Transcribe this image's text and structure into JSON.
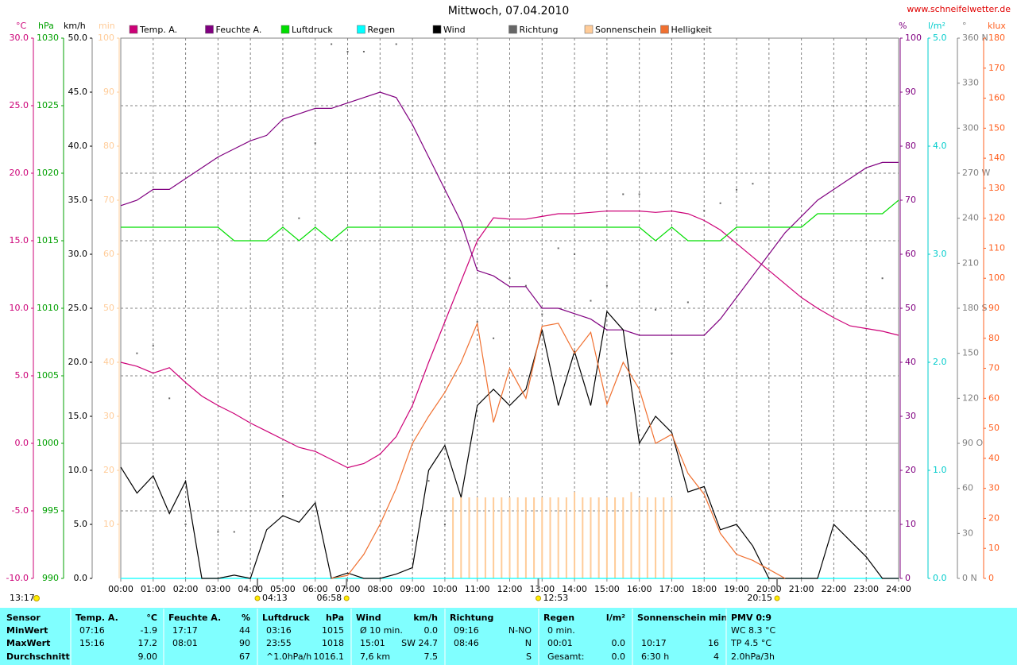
{
  "chart_data": {
    "type": "line",
    "title": "Mittwoch, 07.04.2010",
    "source": "www.schneifelwetter.de",
    "corner_note": "13:17",
    "grid": true,
    "zero_line": true,
    "xlim": [
      0,
      24
    ],
    "xticks": [
      {
        "value": 0,
        "label": "00:00"
      },
      {
        "value": 1,
        "label": "01:00"
      },
      {
        "value": 2,
        "label": "02:00"
      },
      {
        "value": 3,
        "label": "03:00"
      },
      {
        "value": 4,
        "label": "04:00"
      },
      {
        "value": 5,
        "label": "05:00"
      },
      {
        "value": 6,
        "label": "06:00"
      },
      {
        "value": 7,
        "label": "07:00"
      },
      {
        "value": 8,
        "label": "08:00"
      },
      {
        "value": 9,
        "label": "09:00"
      },
      {
        "value": 10,
        "label": "10:00"
      },
      {
        "value": 11,
        "label": "11:00"
      },
      {
        "value": 12,
        "label": "12:00"
      },
      {
        "value": 13,
        "label": "13:00"
      },
      {
        "value": 14,
        "label": "14:00"
      },
      {
        "value": 15,
        "label": "15:00"
      },
      {
        "value": 16,
        "label": "16:00"
      },
      {
        "value": 17,
        "label": "17:00"
      },
      {
        "value": 18,
        "label": "18:00"
      },
      {
        "value": 19,
        "label": "19:00"
      },
      {
        "value": 20,
        "label": "20:00"
      },
      {
        "value": 21,
        "label": "21:00"
      },
      {
        "value": 22,
        "label": "22:00"
      },
      {
        "value": 23,
        "label": "23:00"
      },
      {
        "value": 24,
        "label": "24:00"
      }
    ],
    "annotations": [
      {
        "x": 4.217,
        "label": "04:13"
      },
      {
        "x": 6.967,
        "label": "06:58"
      },
      {
        "x": 12.883,
        "label": "12:53"
      },
      {
        "x": 20.25,
        "label": "20:15"
      }
    ],
    "y_axes": [
      {
        "label": "°C",
        "color": "#cc0077",
        "side": "left",
        "ylim": [
          -10,
          30
        ],
        "yticks": [
          {
            "value": -10,
            "label": "-10.0"
          },
          {
            "value": -5,
            "label": "-5.0"
          },
          {
            "value": 0,
            "label": "0.0"
          },
          {
            "value": 5,
            "label": "5.0"
          },
          {
            "value": 10,
            "label": "10.0"
          },
          {
            "value": 15,
            "label": "15.0"
          },
          {
            "value": 20,
            "label": "20.0"
          },
          {
            "value": 25,
            "label": "25.0"
          },
          {
            "value": 30,
            "label": "30.0"
          }
        ]
      },
      {
        "label": "hPa",
        "color": "#00a000",
        "side": "left",
        "ylim": [
          990,
          1030
        ],
        "yticks": [
          990,
          995,
          1000,
          1005,
          1010,
          1015,
          1020,
          1025,
          1030
        ]
      },
      {
        "label": "km/h",
        "color": "#000000",
        "side": "left",
        "ylim": [
          0,
          50
        ],
        "yticks": [
          {
            "value": 0,
            "label": "0.0"
          },
          {
            "value": 5,
            "label": "5.0"
          },
          {
            "value": 10,
            "label": "10.0"
          },
          {
            "value": 15,
            "label": "15.0"
          },
          {
            "value": 20,
            "label": "20.0"
          },
          {
            "value": 25,
            "label": "25.0"
          },
          {
            "value": 30,
            "label": "30.0"
          },
          {
            "value": 35,
            "label": "35.0"
          },
          {
            "value": 40,
            "label": "40.0"
          },
          {
            "value": 45,
            "label": "45.0"
          },
          {
            "value": 50,
            "label": "50.0"
          }
        ]
      },
      {
        "label": "min",
        "color": "#ffcc99",
        "side": "left",
        "ylim": [
          0,
          100
        ],
        "yticks": [
          10,
          20,
          30,
          40,
          50,
          60,
          70,
          80,
          90,
          100
        ]
      },
      {
        "label": "%",
        "color": "#800080",
        "side": "right",
        "ylim": [
          0,
          100
        ],
        "yticks": [
          0,
          10,
          20,
          30,
          40,
          50,
          60,
          70,
          80,
          90,
          100
        ]
      },
      {
        "label": "l/m²",
        "color": "#00cccc",
        "side": "right",
        "ylim": [
          0,
          5
        ],
        "yticks": [
          {
            "value": 0,
            "label": "0.0"
          },
          {
            "value": 1,
            "label": "1.0"
          },
          {
            "value": 2,
            "label": "2.0"
          },
          {
            "value": 3,
            "label": "3.0"
          },
          {
            "value": 4,
            "label": "4.0"
          },
          {
            "value": 5,
            "label": "5.0"
          }
        ]
      },
      {
        "label": "°",
        "color": "#808080",
        "side": "right",
        "ylim": [
          0,
          360
        ],
        "yticks": [
          {
            "value": 0,
            "label": "0 N"
          },
          30,
          60,
          {
            "value": 90,
            "label": "90 O"
          },
          120,
          150,
          {
            "value": 180,
            "label": "180 S"
          },
          210,
          240,
          {
            "value": 270,
            "label": "270 W"
          },
          300,
          330,
          {
            "value": 360,
            "label": "360 N"
          }
        ]
      },
      {
        "label": "klux",
        "color": "#ff6020",
        "side": "right",
        "ylim": [
          0,
          180
        ],
        "yticks": [
          0,
          10,
          20,
          30,
          40,
          50,
          60,
          70,
          80,
          90,
          100,
          110,
          120,
          130,
          140,
          150,
          160,
          170,
          180
        ]
      }
    ],
    "x": [
      0,
      0.5,
      1,
      1.5,
      2,
      2.5,
      3,
      3.5,
      4,
      4.5,
      5,
      5.5,
      6,
      6.5,
      7,
      7.5,
      8,
      8.5,
      9,
      9.5,
      10,
      10.5,
      11,
      11.5,
      12,
      12.5,
      13,
      13.5,
      14,
      14.5,
      15,
      15.5,
      16,
      16.5,
      17,
      17.5,
      18,
      18.5,
      19,
      19.5,
      20,
      20.5,
      21,
      21.5,
      22,
      22.5,
      23,
      23.5,
      24
    ],
    "series": [
      {
        "name": "Temp. A.",
        "color": "#cc0077",
        "axis": 0,
        "kind": "line",
        "values": [
          6.0,
          5.7,
          5.2,
          5.6,
          4.5,
          3.5,
          2.8,
          2.2,
          1.5,
          0.9,
          0.3,
          -0.3,
          -0.6,
          -1.2,
          -1.8,
          -1.5,
          -0.8,
          0.5,
          2.8,
          6.0,
          9.0,
          12.0,
          15.0,
          16.7,
          16.6,
          16.6,
          16.8,
          17.0,
          17.0,
          17.1,
          17.2,
          17.2,
          17.2,
          17.1,
          17.2,
          17.0,
          16.5,
          15.8,
          14.8,
          13.8,
          12.8,
          11.8,
          10.8,
          10.0,
          9.3,
          8.7,
          8.5,
          8.3,
          8.0
        ]
      },
      {
        "name": "Feuchte A.",
        "color": "#800080",
        "axis": 4,
        "kind": "line",
        "values": [
          69,
          70,
          72,
          72,
          74,
          76,
          78,
          79.5,
          81,
          82,
          85,
          86,
          87,
          87,
          88,
          89,
          90,
          89,
          84,
          78,
          72,
          66,
          57,
          56,
          54,
          54,
          50,
          50,
          49,
          48,
          46,
          46,
          45,
          45,
          45,
          45,
          45,
          48,
          52,
          56,
          60,
          64,
          67,
          70,
          72,
          74,
          76,
          77,
          77
        ]
      },
      {
        "name": "Luftdruck",
        "color": "#00dd00",
        "axis": 1,
        "kind": "line",
        "values": [
          1016,
          1016,
          1016,
          1016,
          1016,
          1016,
          1016,
          1015,
          1015,
          1015,
          1016,
          1015,
          1016,
          1015,
          1016,
          1016,
          1016,
          1016,
          1016,
          1016,
          1016,
          1016,
          1016,
          1016,
          1016,
          1016,
          1016,
          1016,
          1016,
          1016,
          1016,
          1016,
          1016,
          1015,
          1016,
          1015,
          1015,
          1015,
          1016,
          1016,
          1016,
          1016,
          1016,
          1017,
          1017,
          1017,
          1017,
          1017,
          1018
        ]
      },
      {
        "name": "Regen",
        "color": "#00ffff",
        "axis": 5,
        "kind": "line",
        "x": [
          0,
          24
        ],
        "values": [
          0,
          0
        ]
      },
      {
        "name": "Wind",
        "color": "#000000",
        "axis": 2,
        "kind": "line",
        "values": [
          10.3,
          7.9,
          9.5,
          6.0,
          9.0,
          0,
          0,
          0.3,
          0,
          4.5,
          5.8,
          5.2,
          7.0,
          0,
          0.5,
          0,
          0,
          0.4,
          1.0,
          10.0,
          12.3,
          7.5,
          16.0,
          17.5,
          16.0,
          17.5,
          23.0,
          16.0,
          21.0,
          16.0,
          24.7,
          23.0,
          12.5,
          15.0,
          13.5,
          8.0,
          8.5,
          4.5,
          5.0,
          3.0,
          0,
          0,
          0,
          0,
          5.0,
          3.5,
          2.0,
          0,
          0
        ]
      },
      {
        "name": "Richtung",
        "color": "#666666",
        "axis": 6,
        "kind": "dots",
        "values": [
          null,
          150,
          155,
          120,
          36,
          null,
          31,
          31,
          null,
          null,
          55,
          240,
          290,
          356,
          351,
          351,
          null,
          356,
          25,
          65,
          36,
          null,
          171,
          160,
          200,
          195,
          176,
          220,
          216,
          185,
          195,
          256,
          256,
          179,
          150,
          184,
          245,
          250,
          259,
          263,
          null,
          null,
          null,
          null,
          null,
          null,
          null,
          200,
          null
        ]
      },
      {
        "name": "Sonnenschein",
        "color": "#ffcc99",
        "axis": 3,
        "kind": "bars",
        "x": [
          10.25,
          10.5,
          10.75,
          11,
          11.25,
          11.5,
          11.75,
          12,
          12.25,
          12.5,
          12.75,
          13,
          13.25,
          13.5,
          13.75,
          14,
          14.25,
          14.5,
          14.75,
          15,
          15.25,
          15.5,
          15.75,
          16,
          16.25,
          16.5,
          16.75,
          17
        ],
        "values": [
          15,
          15,
          15,
          15,
          15,
          15,
          15,
          15,
          15,
          15,
          15,
          15,
          15,
          15,
          15,
          16,
          15,
          15,
          15,
          15,
          15,
          15,
          16,
          15,
          15,
          15,
          15,
          15
        ]
      },
      {
        "name": "Helligkeit",
        "color": "#f07030",
        "axis": 7,
        "kind": "line",
        "values": [
          null,
          null,
          null,
          null,
          null,
          null,
          null,
          null,
          null,
          null,
          null,
          null,
          null,
          0,
          1,
          8,
          18,
          30,
          45,
          54,
          62,
          72,
          85,
          52,
          70,
          60,
          84,
          85,
          75,
          82,
          58,
          72,
          63,
          45,
          48,
          35,
          28,
          15,
          8,
          6,
          3,
          0,
          null,
          null,
          null,
          null,
          null,
          null,
          null
        ]
      }
    ]
  },
  "table": {
    "sections": [
      {
        "header": "Sensor",
        "rows": [
          {
            "left": "MinWert"
          },
          {
            "left": "MaxWert"
          },
          {
            "left": "Durchschnitt"
          }
        ]
      },
      {
        "header": "Temp. A.",
        "unit": "°C",
        "rows": [
          {
            "left": "07:16",
            "right": "-1.9"
          },
          {
            "left": "15:16",
            "right": "17.2"
          },
          {
            "right": "9.00"
          }
        ]
      },
      {
        "header": "Feuchte A.",
        "unit": "%",
        "rows": [
          {
            "left": "17:17",
            "right": "44"
          },
          {
            "left": "08:01",
            "right": "90"
          },
          {
            "right": "67"
          }
        ]
      },
      {
        "header": "Luftdruck",
        "unit": "hPa",
        "rows": [
          {
            "left": "03:16",
            "right": "1015"
          },
          {
            "left": "23:55",
            "right": "1018"
          },
          {
            "left": "^1.0hPa/h",
            "right": "1016.1"
          }
        ]
      },
      {
        "header": "Wind",
        "unit": "km/h",
        "rows": [
          {
            "left": "Ø 10 min.",
            "right": "0.0"
          },
          {
            "left": "15:01",
            "right": "SW 24.7"
          },
          {
            "left": "7,6 km",
            "right": "7.5"
          }
        ]
      },
      {
        "header": "Richtung",
        "rows": [
          {
            "left": "09:16",
            "right": "N-NO"
          },
          {
            "left": "08:46",
            "right": "N"
          },
          {
            "right": "S"
          }
        ]
      },
      {
        "header": "Regen",
        "unit": "l/m²",
        "rows": [
          {
            "left": "0 min."
          },
          {
            "left": "00:01",
            "right": "0.0"
          },
          {
            "left": "Gesamt:",
            "right": "0.0"
          }
        ]
      },
      {
        "header": "Sonnenschein min",
        "rows": [
          {},
          {
            "left": "10:17",
            "right": "16"
          },
          {
            "left": "6:30 h",
            "right": "4"
          }
        ]
      },
      {
        "header": "PMV 0:9",
        "rows": [
          {
            "left": "WC 8.3 °C"
          },
          {
            "left": "TP 4.5 °C"
          },
          {
            "left": "2.0hPa/3h"
          }
        ]
      }
    ]
  }
}
